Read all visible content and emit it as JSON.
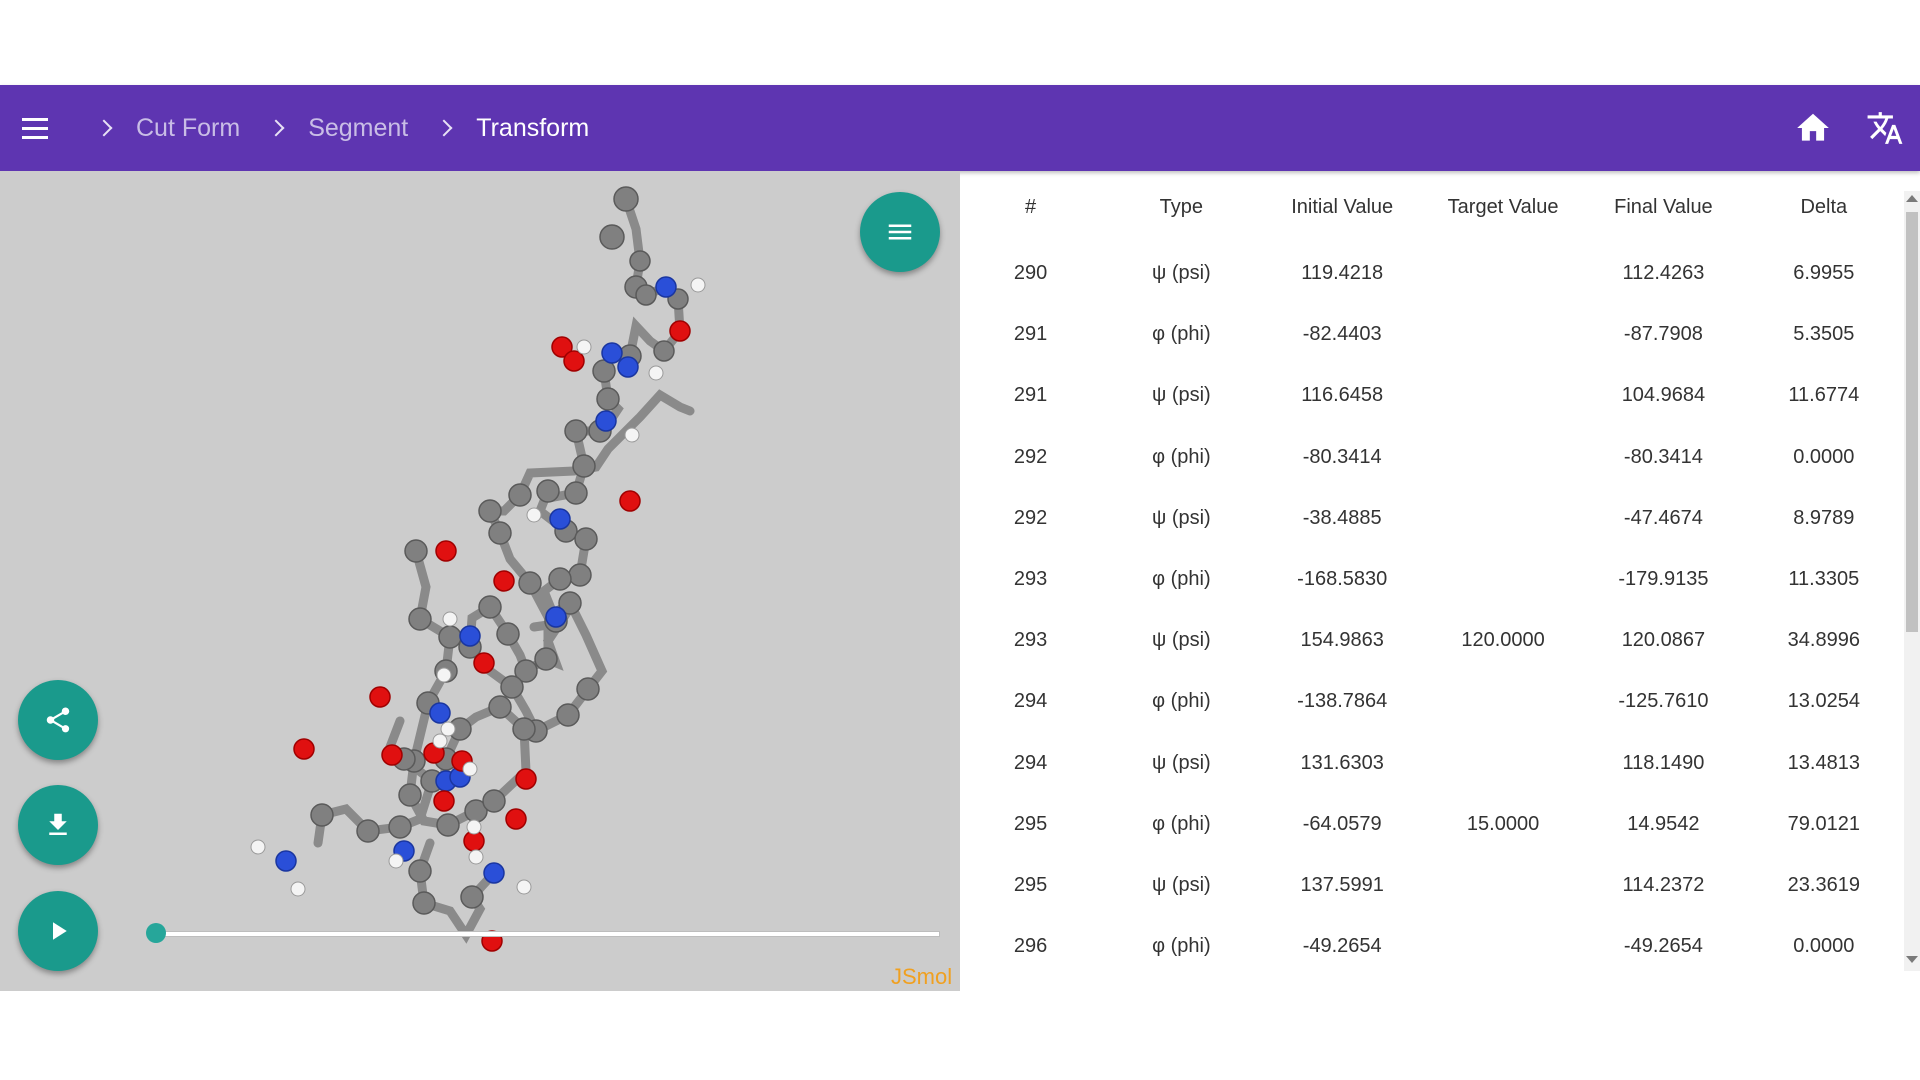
{
  "breadcrumb": [
    "Cut Form",
    "Segment",
    "Transform"
  ],
  "icons": {
    "menu": "hamburger-menu-icon",
    "home": "home-icon",
    "translate": "translate-icon",
    "share": "share-icon",
    "download": "download-icon",
    "play": "play-icon",
    "viewer_menu": "menu-icon"
  },
  "colors": {
    "app_bar": "#5e35b1",
    "fab": "#1a9a8c",
    "viewer_bg": "#cccccc"
  },
  "viewer": {
    "watermark": "JSmol",
    "slider_value": 0
  },
  "table": {
    "headers": [
      "#",
      "Type",
      "Initial Value",
      "Target Value",
      "Final Value",
      "Delta"
    ],
    "rows": [
      [
        "290",
        "ψ (psi)",
        "119.4218",
        "",
        "112.4263",
        "6.9955"
      ],
      [
        "291",
        "φ (phi)",
        "-82.4403",
        "",
        "-87.7908",
        "5.3505"
      ],
      [
        "291",
        "ψ (psi)",
        "116.6458",
        "",
        "104.9684",
        "11.6774"
      ],
      [
        "292",
        "φ (phi)",
        "-80.3414",
        "",
        "-80.3414",
        "0.0000"
      ],
      [
        "292",
        "ψ (psi)",
        "-38.4885",
        "",
        "-47.4674",
        "8.9789"
      ],
      [
        "293",
        "φ (phi)",
        "-168.5830",
        "",
        "-179.9135",
        "11.3305"
      ],
      [
        "293",
        "ψ (psi)",
        "154.9863",
        "120.0000",
        "120.0867",
        "34.8996"
      ],
      [
        "294",
        "φ (phi)",
        "-138.7864",
        "",
        "-125.7610",
        "13.0254"
      ],
      [
        "294",
        "ψ (psi)",
        "131.6303",
        "",
        "118.1490",
        "13.4813"
      ],
      [
        "295",
        "φ (phi)",
        "-64.0579",
        "15.0000",
        "14.9542",
        "79.0121"
      ],
      [
        "295",
        "ψ (psi)",
        "137.5991",
        "",
        "114.2372",
        "23.3619"
      ],
      [
        "296",
        "φ (phi)",
        "-49.2654",
        "",
        "-49.2654",
        "0.0000"
      ]
    ]
  }
}
